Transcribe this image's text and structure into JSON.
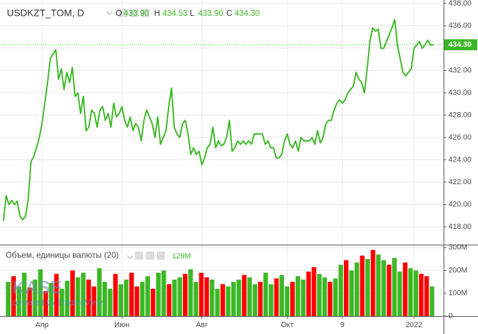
{
  "chart_data": [
    {
      "type": "line",
      "title": "USDKZT_TOM, D",
      "color": "#3cb825",
      "ohlc": [
        {
          "key": "O",
          "value": 433.9,
          "label": "433.90"
        },
        {
          "key": "H",
          "value": 434.53,
          "label": "434.53"
        },
        {
          "key": "L",
          "value": 433.9,
          "label": "433.90"
        },
        {
          "key": "C",
          "value": 434.3,
          "label": "434.30"
        }
      ],
      "last_value": {
        "value": 434.3,
        "label": "434.30"
      },
      "values": [
        418.52,
        420.79,
        419.99,
        420.36,
        419.99,
        420.29,
        418.94,
        418.64,
        418.94,
        420.48,
        423.85,
        424.28,
        425.08,
        426.0,
        427.23,
        429.07,
        430.91,
        433.06,
        433.48,
        433.85,
        431.21,
        432.13,
        430.29,
        431.83,
        430.91,
        432.26,
        429.68,
        429.99,
        428.15,
        429.68,
        426.61,
        426.92,
        428.45,
        428.15,
        426.92,
        428.45,
        428.76,
        427.53,
        428.15,
        426.92,
        429.07,
        427.84,
        428.15,
        428.76,
        427.53,
        426.92,
        427.84,
        426.61,
        427.23,
        426.92,
        425.69,
        427.53,
        428.45,
        427.84,
        427.23,
        426.0,
        427.84,
        425.39,
        426.0,
        426.61,
        428.76,
        430.42,
        426.92,
        426.31,
        426.0,
        427.23,
        427.53,
        426.31,
        424.47,
        425.08,
        424.47,
        424.77,
        423.55,
        424.16,
        425.08,
        425.39,
        426.92,
        425.08,
        425.69,
        425.26,
        425.39,
        426.0,
        427.53,
        424.77,
        425.08,
        425.69,
        425.39,
        425.69,
        425.39,
        425.69,
        425.39,
        426.31,
        426.31,
        426.31,
        426.31,
        425.39,
        425.69,
        425.08,
        425.08,
        424.16,
        424.16,
        424.47,
        425.69,
        426.31,
        425.39,
        425.08,
        425.69,
        424.77,
        426.0,
        425.69,
        425.69,
        425.69,
        426.0,
        425.39,
        426.61,
        425.51,
        426.0,
        427.23,
        427.53,
        427.53,
        428.45,
        429.07,
        429.37,
        429.07,
        429.37,
        429.99,
        430.29,
        430.6,
        431.83,
        431.21,
        430.91,
        429.99,
        432.13,
        434.59,
        435.82,
        435.51,
        435.69,
        433.98,
        433.98,
        434.59,
        435.2,
        435.82,
        436.55,
        434.28,
        433.06,
        431.83,
        431.52,
        431.83,
        432.13,
        433.98,
        434.28,
        434.59,
        433.98,
        434.28,
        434.71,
        434.28,
        434.3
      ],
      "xlim": [
        -1.25,
        159.75
      ],
      "xticks": [
        {
          "value": 14,
          "label": "Апр"
        },
        {
          "value": 43,
          "label": "Июн"
        },
        {
          "value": 72,
          "label": "Авг"
        },
        {
          "value": 103,
          "label": "Окт"
        },
        {
          "value": 123,
          "label": "9"
        },
        {
          "value": 149,
          "label": "2022"
        }
      ],
      "ylim": [
        416.46,
        438.31
      ],
      "yticks": [
        {
          "value": 418,
          "label": "418.00"
        },
        {
          "value": 420,
          "label": "420.00"
        },
        {
          "value": 422,
          "label": "422.00"
        },
        {
          "value": 424,
          "label": "424.00"
        },
        {
          "value": 426,
          "label": "426.00"
        },
        {
          "value": 428,
          "label": "428.00"
        },
        {
          "value": 430,
          "label": "430.00"
        },
        {
          "value": 432,
          "label": "432.00"
        },
        {
          "value": 434,
          "label": "434.00"
        },
        {
          "value": 436,
          "label": "436.00"
        },
        {
          "value": 438,
          "label": "438.00"
        }
      ],
      "grid": true
    },
    {
      "type": "bar",
      "title": "Объем, единицы валюты (20)",
      "current": {
        "value": 129000000,
        "label": "129M"
      },
      "values": [
        150000000,
        175000000,
        130000000,
        190000000,
        125000000,
        160000000,
        205000000,
        110000000,
        145000000,
        185000000,
        120000000,
        155000000,
        200000000,
        170000000,
        190000000,
        160000000,
        130000000,
        210000000,
        150000000,
        120000000,
        185000000,
        140000000,
        160000000,
        190000000,
        130000000,
        150000000,
        175000000,
        120000000,
        190000000,
        200000000,
        140000000,
        160000000,
        170000000,
        185000000,
        205000000,
        150000000,
        190000000,
        170000000,
        160000000,
        120000000,
        140000000,
        130000000,
        150000000,
        160000000,
        180000000,
        170000000,
        140000000,
        150000000,
        190000000,
        140000000,
        165000000,
        180000000,
        130000000,
        150000000,
        175000000,
        160000000,
        195000000,
        215000000,
        185000000,
        170000000,
        150000000,
        165000000,
        225000000,
        245000000,
        200000000,
        235000000,
        265000000,
        250000000,
        290000000,
        270000000,
        245000000,
        225000000,
        255000000,
        195000000,
        235000000,
        210000000,
        200000000,
        185000000,
        175000000,
        130000000
      ],
      "colors": [
        "#3cb825",
        "#ff0000",
        "#3cb825",
        "#3cb825",
        "#ff0000",
        "#3cb825",
        "#3cb825",
        "#ff0000",
        "#3cb825",
        "#ff0000",
        "#3cb825",
        "#3cb825",
        "#ff0000",
        "#3cb825",
        "#3cb825",
        "#ff0000",
        "#ff0000",
        "#3cb825",
        "#3cb825",
        "#3cb825",
        "#ff0000",
        "#3cb825",
        "#3cb825",
        "#ff0000",
        "#ff0000",
        "#3cb825",
        "#3cb825",
        "#ff0000",
        "#3cb825",
        "#3cb825",
        "#ff0000",
        "#3cb825",
        "#3cb825",
        "#ff0000",
        "#3cb825",
        "#3cb825",
        "#ff0000",
        "#ff0000",
        "#3cb825",
        "#3cb825",
        "#ff0000",
        "#3cb825",
        "#3cb825",
        "#3cb825",
        "#ff0000",
        "#3cb825",
        "#3cb825",
        "#ff0000",
        "#3cb825",
        "#3cb825",
        "#ff0000",
        "#3cb825",
        "#3cb825",
        "#ff0000",
        "#3cb825",
        "#3cb825",
        "#ff0000",
        "#ff0000",
        "#3cb825",
        "#3cb825",
        "#ff0000",
        "#3cb825",
        "#3cb825",
        "#ff0000",
        "#3cb825",
        "#3cb825",
        "#ff0000",
        "#3cb825",
        "#ff0000",
        "#3cb825",
        "#3cb825",
        "#ff0000",
        "#3cb825",
        "#3cb825",
        "#ff0000",
        "#3cb825",
        "#3cb825",
        "#ff0000",
        "#ff0000",
        "#3cb825"
      ],
      "ylim": [
        0,
        310000000
      ],
      "yticks": [
        0,
        {
          "value": 100000000,
          "label": "100M"
        },
        {
          "value": 200000000,
          "label": "200M"
        },
        {
          "value": 300000000,
          "label": "300M"
        }
      ]
    }
  ],
  "watermark": {
    "logo": "KASE",
    "powered": "powered by TradingView"
  }
}
